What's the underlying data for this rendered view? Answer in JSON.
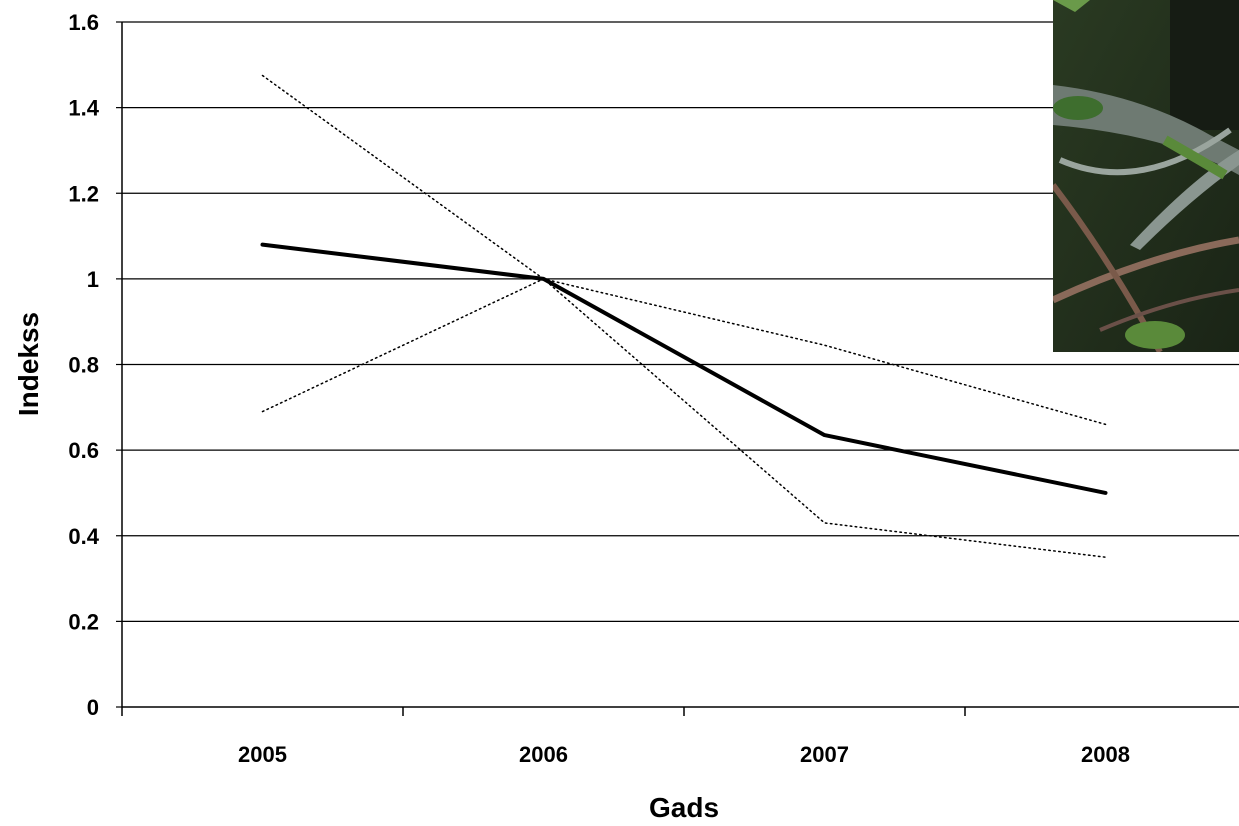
{
  "chart_data": {
    "type": "line",
    "categories": [
      "2005",
      "2006",
      "2007",
      "2008"
    ],
    "xlabel": "Gads",
    "ylabel": "Indekss",
    "ylim": [
      0,
      1.6
    ],
    "yticks": [
      "0",
      "0.2",
      "0.4",
      "0.6",
      "0.8",
      "1",
      "1.2",
      "1.4",
      "1.6"
    ],
    "grid": "horizontal",
    "series": [
      {
        "values": [
          1.08,
          1.0,
          0.635,
          0.5
        ],
        "style": "solid",
        "color": "#000000"
      },
      {
        "values": [
          1.475,
          1.0,
          0.43,
          0.35
        ],
        "style": "dotted",
        "color": "#000000"
      },
      {
        "values": [
          0.69,
          1.0,
          0.845,
          0.66
        ],
        "style": "dotted",
        "color": "#000000"
      }
    ]
  },
  "photo": {
    "icon": "bird-on-branch-photo"
  }
}
